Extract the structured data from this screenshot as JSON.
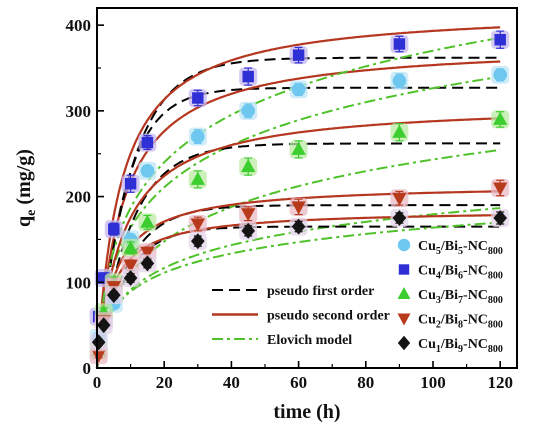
{
  "chart_data": {
    "type": "scatter",
    "xlabel": "time (h)",
    "ylabel": "qe (mg/g)",
    "ylabel_main": "q",
    "ylabel_sub": "e",
    "ylabel_rest": " (mg/g)",
    "xlim": [
      0,
      125
    ],
    "ylim": [
      0,
      420
    ],
    "xticks": [
      0,
      20,
      40,
      60,
      80,
      100,
      120
    ],
    "yticks": [
      0,
      100,
      200,
      300,
      400
    ],
    "grid": false,
    "legend_placement": "bottom-right",
    "models": [
      {
        "name": "pseudo first order",
        "style": "dashed",
        "color": "#000000"
      },
      {
        "name": "pseudo second order",
        "style": "solid",
        "color": "#b5371f"
      },
      {
        "name": "Elovich model",
        "style": "dashdot",
        "color": "#4fc22a"
      }
    ],
    "series": [
      {
        "name": "Cu5/Bi5-NC800",
        "parts": [
          [
            "Cu",
            "n"
          ],
          [
            "5",
            "s"
          ],
          [
            "/Bi",
            "n"
          ],
          [
            "5",
            "s"
          ],
          [
            "-NC",
            "n"
          ],
          [
            "800",
            "s"
          ]
        ],
        "marker": "circle",
        "color": "#6ec7ee",
        "halo": "#bfe6f7",
        "x": [
          0.5,
          2,
          5,
          10,
          15,
          30,
          45,
          60,
          90,
          120
        ],
        "y": [
          35,
          55,
          75,
          150,
          230,
          270,
          300,
          325,
          335,
          342
        ],
        "err": [
          4,
          4,
          5,
          6,
          6,
          8,
          8,
          7,
          8,
          7
        ],
        "pfo": {
          "qe": 327,
          "k": 0.12
        },
        "pso": {
          "qe": 380,
          "k": 0.00035
        },
        "elo": {
          "a": 60,
          "b": 0.0135
        }
      },
      {
        "name": "Cu4/Bi6-NC800",
        "parts": [
          [
            "Cu",
            "n"
          ],
          [
            "4",
            "s"
          ],
          [
            "/Bi",
            "n"
          ],
          [
            "6",
            "s"
          ],
          [
            "-NC",
            "n"
          ],
          [
            "800",
            "s"
          ]
        ],
        "marker": "square",
        "color": "#2f2fd6",
        "halo": "#c5b7ef",
        "x": [
          0.5,
          2,
          5,
          10,
          15,
          30,
          45,
          60,
          90,
          120
        ],
        "y": [
          60,
          105,
          162,
          215,
          263,
          315,
          340,
          365,
          378,
          383
        ],
        "err": [
          6,
          6,
          7,
          10,
          8,
          9,
          10,
          9,
          9,
          10
        ],
        "pfo": {
          "qe": 362,
          "k": 0.1
        },
        "pso": {
          "qe": 420,
          "k": 0.00035
        },
        "elo": {
          "a": 70,
          "b": 0.012
        }
      },
      {
        "name": "Cu3/Bi7-NC800",
        "parts": [
          [
            "Cu",
            "n"
          ],
          [
            "3",
            "s"
          ],
          [
            "/Bi",
            "n"
          ],
          [
            "7",
            "s"
          ],
          [
            "-NC",
            "n"
          ],
          [
            "800",
            "s"
          ]
        ],
        "marker": "triangle-up",
        "color": "#3ccd2e",
        "halo": "#bce9a4",
        "x": [
          0.5,
          2,
          5,
          10,
          15,
          30,
          45,
          60,
          90,
          120
        ],
        "y": [
          20,
          65,
          100,
          140,
          170,
          220,
          235,
          255,
          275,
          290
        ],
        "err": [
          4,
          5,
          6,
          7,
          8,
          10,
          10,
          10,
          10,
          9
        ],
        "pfo": {
          "qe": 262,
          "k": 0.1
        },
        "pso": {
          "qe": 310,
          "k": 0.00042
        },
        "elo": {
          "a": 30,
          "b": 0.016
        }
      },
      {
        "name": "Cu2/Bi8-NC800",
        "parts": [
          [
            "Cu",
            "n"
          ],
          [
            "2",
            "s"
          ],
          [
            "/Bi",
            "n"
          ],
          [
            "8",
            "s"
          ],
          [
            "-NC",
            "n"
          ],
          [
            "800",
            "s"
          ]
        ],
        "marker": "triangle-down",
        "color": "#b83a1c",
        "halo": "#eab9c5",
        "x": [
          0.5,
          2,
          5,
          10,
          15,
          30,
          45,
          60,
          90,
          120
        ],
        "y": [
          15,
          55,
          95,
          120,
          135,
          168,
          180,
          188,
          198,
          210
        ],
        "err": [
          3,
          4,
          5,
          6,
          6,
          8,
          8,
          9,
          8,
          9
        ],
        "pfo": {
          "qe": 190,
          "k": 0.11
        },
        "pso": {
          "qe": 215,
          "k": 0.0009
        },
        "elo": {
          "a": 35,
          "b": 0.025
        }
      },
      {
        "name": "Cu1/Bi9-NC800",
        "parts": [
          [
            "Cu",
            "n"
          ],
          [
            "1",
            "s"
          ],
          [
            "/Bi",
            "n"
          ],
          [
            "9",
            "s"
          ],
          [
            "-NC",
            "n"
          ],
          [
            "800",
            "s"
          ]
        ],
        "marker": "diamond",
        "color": "#141414",
        "halo": "#e3d4ea",
        "x": [
          0.5,
          2,
          5,
          10,
          15,
          30,
          45,
          60,
          90,
          120
        ],
        "y": [
          30,
          50,
          85,
          105,
          122,
          148,
          160,
          165,
          175,
          175
        ],
        "err": [
          3,
          3,
          4,
          5,
          5,
          6,
          6,
          6,
          6,
          7
        ],
        "pfo": {
          "qe": 165,
          "k": 0.12
        },
        "pso": {
          "qe": 185,
          "k": 0.0012
        },
        "elo": {
          "a": 45,
          "b": 0.03
        }
      }
    ]
  }
}
